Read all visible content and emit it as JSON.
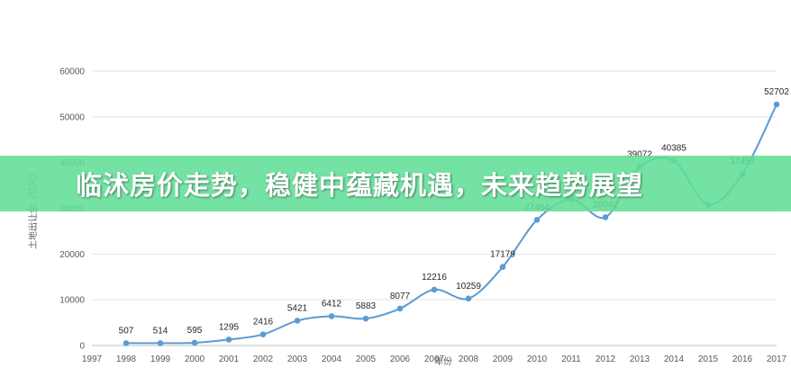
{
  "banner": {
    "title": "临沭房价走势，稳健中蕴藏机遇，未来趋势展望"
  },
  "chart_data": {
    "type": "line",
    "xlabel": "年份",
    "ylabel": "土地出让金（亿元）",
    "x_ticks": [
      "1997",
      "1998",
      "1999",
      "2000",
      "2001",
      "2002",
      "2003",
      "2004",
      "2005",
      "2006",
      "2007",
      "2008",
      "2009",
      "2010",
      "2011",
      "2012",
      "2013",
      "2014",
      "2015",
      "2016",
      "2017"
    ],
    "y_ticks": [
      0,
      10000,
      20000,
      30000,
      40000,
      50000,
      60000
    ],
    "ylim": [
      0,
      60000
    ],
    "grid": true,
    "smooth": true,
    "line_color": "#5b9bd5",
    "series": [
      {
        "x": [
          "1998",
          "1999",
          "2000",
          "2001",
          "2002",
          "2003",
          "2004",
          "2005",
          "2006",
          "2007",
          "2008",
          "2009",
          "2010",
          "2011",
          "2012",
          "2013",
          "2014",
          "2015",
          "2016",
          "2017"
        ],
        "values": [
          507,
          514,
          595,
          1295,
          2416,
          5421,
          6412,
          5883,
          8077,
          12216,
          10259,
          17179,
          27464,
          32000,
          28042,
          39072,
          40385,
          30800,
          37457,
          52702
        ],
        "labels": [
          "507",
          "514",
          "595",
          "1295",
          "2416",
          "5421",
          "6412",
          "5883",
          "8077",
          "12216",
          "10259",
          "17179",
          "27464",
          "",
          "28042",
          "39072",
          "40385",
          "",
          "37457",
          "52702"
        ]
      }
    ]
  }
}
